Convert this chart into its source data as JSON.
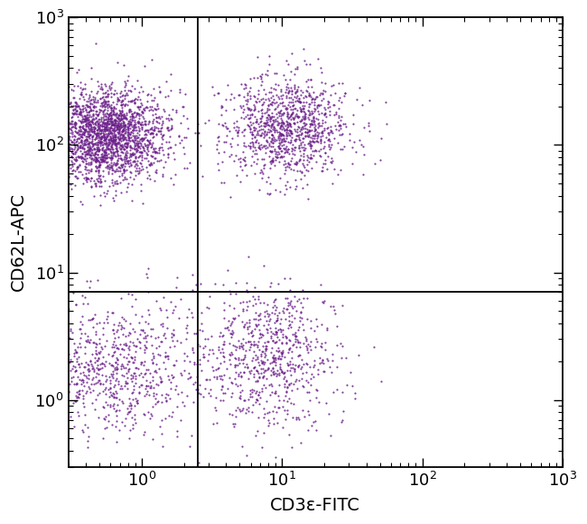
{
  "title": "",
  "xlabel": "CD3ε-FITC",
  "ylabel": "CD62L-APC",
  "dot_color": "#6B1F8A",
  "dot_size": 2.5,
  "dot_alpha": 0.85,
  "xlim_log": [
    0.3,
    1000
  ],
  "ylim_log": [
    0.3,
    1000
  ],
  "xline": 2.5,
  "yline": 7.0,
  "background_color": "#ffffff",
  "seed": 42,
  "n_q2": 2200,
  "n_q1": 1100,
  "n_q3": 800,
  "n_q4": 750,
  "xlabel_fontsize": 14,
  "ylabel_fontsize": 14,
  "tick_labelsize": 13
}
